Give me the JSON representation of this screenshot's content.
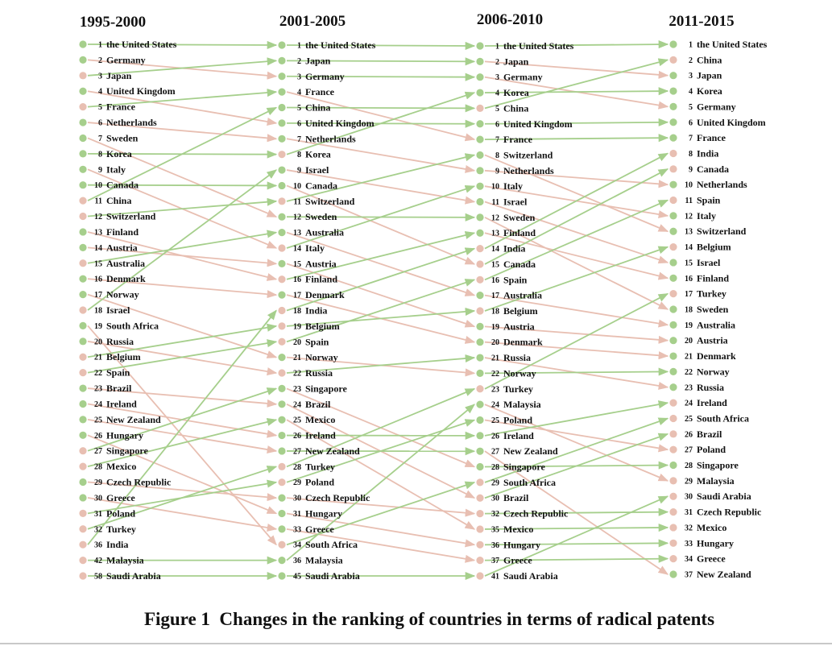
{
  "figure": {
    "caption": "Figure 1  Changes in the ranking of countries in terms of radical patents"
  },
  "colors": {
    "up": "#a6cf8c",
    "down": "#e8bfb2",
    "text": "#111111"
  },
  "periods": [
    {
      "title": "1995-2000",
      "entries": [
        {
          "rank": "1",
          "country": "the United States",
          "trend": "up"
        },
        {
          "rank": "2",
          "country": "Germany",
          "trend": "up"
        },
        {
          "rank": "3",
          "country": "Japan",
          "trend": "down"
        },
        {
          "rank": "4",
          "country": "United Kingdom",
          "trend": "up"
        },
        {
          "rank": "5",
          "country": "France",
          "trend": "down"
        },
        {
          "rank": "6",
          "country": "Netherlands",
          "trend": "up"
        },
        {
          "rank": "7",
          "country": "Sweden",
          "trend": "up"
        },
        {
          "rank": "8",
          "country": "Korea",
          "trend": "up"
        },
        {
          "rank": "9",
          "country": "Italy",
          "trend": "up"
        },
        {
          "rank": "10",
          "country": "Canada",
          "trend": "up"
        },
        {
          "rank": "11",
          "country": "China",
          "trend": "down"
        },
        {
          "rank": "12",
          "country": "Switzerland",
          "trend": "down"
        },
        {
          "rank": "13",
          "country": "Finland",
          "trend": "up"
        },
        {
          "rank": "14",
          "country": "Austria",
          "trend": "up"
        },
        {
          "rank": "15",
          "country": "Australia",
          "trend": "down"
        },
        {
          "rank": "16",
          "country": "Denmark",
          "trend": "up"
        },
        {
          "rank": "17",
          "country": "Norway",
          "trend": "up"
        },
        {
          "rank": "18",
          "country": "Israel",
          "trend": "down"
        },
        {
          "rank": "19",
          "country": "South Africa",
          "trend": "up"
        },
        {
          "rank": "20",
          "country": "Russia",
          "trend": "up"
        },
        {
          "rank": "21",
          "country": "Belgium",
          "trend": "down"
        },
        {
          "rank": "22",
          "country": "Spain",
          "trend": "down"
        },
        {
          "rank": "23",
          "country": "Brazil",
          "trend": "up"
        },
        {
          "rank": "24",
          "country": "Ireland",
          "trend": "up"
        },
        {
          "rank": "25",
          "country": "New Zealand",
          "trend": "up"
        },
        {
          "rank": "26",
          "country": "Hungary",
          "trend": "up"
        },
        {
          "rank": "27",
          "country": "Singapore",
          "trend": "down"
        },
        {
          "rank": "28",
          "country": "Mexico",
          "trend": "down"
        },
        {
          "rank": "29",
          "country": "Czech Republic",
          "trend": "up"
        },
        {
          "rank": "30",
          "country": "Greece",
          "trend": "up"
        },
        {
          "rank": "31",
          "country": "Poland",
          "trend": "down"
        },
        {
          "rank": "32",
          "country": "Turkey",
          "trend": "down"
        },
        {
          "rank": "36",
          "country": "India",
          "trend": "down"
        },
        {
          "rank": "42",
          "country": "Malaysia",
          "trend": "down"
        },
        {
          "rank": "58",
          "country": "Saudi Arabia",
          "trend": "down"
        }
      ]
    },
    {
      "title": "2001-2005",
      "entries": [
        {
          "rank": "1",
          "country": "the United States",
          "trend": "up"
        },
        {
          "rank": "2",
          "country": "Japan",
          "trend": "up"
        },
        {
          "rank": "3",
          "country": "Germany",
          "trend": "up"
        },
        {
          "rank": "4",
          "country": "France",
          "trend": "up"
        },
        {
          "rank": "5",
          "country": "China",
          "trend": "up"
        },
        {
          "rank": "6",
          "country": "United Kingdom",
          "trend": "up"
        },
        {
          "rank": "7",
          "country": "Netherlands",
          "trend": "up"
        },
        {
          "rank": "8",
          "country": "Korea",
          "trend": "down"
        },
        {
          "rank": "9",
          "country": "Israel",
          "trend": "up"
        },
        {
          "rank": "10",
          "country": "Canada",
          "trend": "up"
        },
        {
          "rank": "11",
          "country": "Switzerland",
          "trend": "down"
        },
        {
          "rank": "12",
          "country": "Sweden",
          "trend": "up"
        },
        {
          "rank": "13",
          "country": "Australia",
          "trend": "up"
        },
        {
          "rank": "14",
          "country": "Italy",
          "trend": "down"
        },
        {
          "rank": "15",
          "country": "Austria",
          "trend": "up"
        },
        {
          "rank": "16",
          "country": "Finland",
          "trend": "down"
        },
        {
          "rank": "17",
          "country": "Denmark",
          "trend": "up"
        },
        {
          "rank": "18",
          "country": "India",
          "trend": "down"
        },
        {
          "rank": "19",
          "country": "Belgium",
          "trend": "down"
        },
        {
          "rank": "20",
          "country": "Spain",
          "trend": "down"
        },
        {
          "rank": "21",
          "country": "Norway",
          "trend": "up"
        },
        {
          "rank": "22",
          "country": "Russia",
          "trend": "down"
        },
        {
          "rank": "23",
          "country": "Singapore",
          "trend": "up"
        },
        {
          "rank": "24",
          "country": "Brazil",
          "trend": "up"
        },
        {
          "rank": "25",
          "country": "Mexico",
          "trend": "up"
        },
        {
          "rank": "26",
          "country": "Ireland",
          "trend": "up"
        },
        {
          "rank": "27",
          "country": "New Zealand",
          "trend": "up"
        },
        {
          "rank": "28",
          "country": "Turkey",
          "trend": "down"
        },
        {
          "rank": "29",
          "country": "Poland",
          "trend": "down"
        },
        {
          "rank": "30",
          "country": "Czech Republic",
          "trend": "up"
        },
        {
          "rank": "31",
          "country": "Hungary",
          "trend": "up"
        },
        {
          "rank": "33",
          "country": "Greece",
          "trend": "up"
        },
        {
          "rank": "34",
          "country": "South Africa",
          "trend": "down"
        },
        {
          "rank": "36",
          "country": "Malaysia",
          "trend": "up"
        },
        {
          "rank": "45",
          "country": "Saudi Arabia",
          "trend": "up"
        }
      ]
    },
    {
      "title": "2006-2010",
      "entries": [
        {
          "rank": "1",
          "country": "the United States",
          "trend": "up"
        },
        {
          "rank": "2",
          "country": "Japan",
          "trend": "up"
        },
        {
          "rank": "3",
          "country": "Germany",
          "trend": "up"
        },
        {
          "rank": "4",
          "country": "Korea",
          "trend": "up"
        },
        {
          "rank": "5",
          "country": "China",
          "trend": "down"
        },
        {
          "rank": "6",
          "country": "United Kingdom",
          "trend": "up"
        },
        {
          "rank": "7",
          "country": "France",
          "trend": "up"
        },
        {
          "rank": "8",
          "country": "Switzerland",
          "trend": "up"
        },
        {
          "rank": "9",
          "country": "Netherlands",
          "trend": "up"
        },
        {
          "rank": "10",
          "country": "Italy",
          "trend": "up"
        },
        {
          "rank": "11",
          "country": "Israel",
          "trend": "up"
        },
        {
          "rank": "12",
          "country": "Sweden",
          "trend": "up"
        },
        {
          "rank": "13",
          "country": "Finland",
          "trend": "up"
        },
        {
          "rank": "14",
          "country": "India",
          "trend": "down"
        },
        {
          "rank": "15",
          "country": "Canada",
          "trend": "down"
        },
        {
          "rank": "16",
          "country": "Spain",
          "trend": "down"
        },
        {
          "rank": "17",
          "country": "Australia",
          "trend": "up"
        },
        {
          "rank": "18",
          "country": "Belgium",
          "trend": "down"
        },
        {
          "rank": "19",
          "country": "Austria",
          "trend": "up"
        },
        {
          "rank": "20",
          "country": "Denmark",
          "trend": "up"
        },
        {
          "rank": "21",
          "country": "Russia",
          "trend": "up"
        },
        {
          "rank": "22",
          "country": "Norway",
          "trend": "up"
        },
        {
          "rank": "23",
          "country": "Turkey",
          "trend": "down"
        },
        {
          "rank": "24",
          "country": "Malaysia",
          "trend": "up"
        },
        {
          "rank": "25",
          "country": "Poland",
          "trend": "up"
        },
        {
          "rank": "26",
          "country": "Ireland",
          "trend": "up"
        },
        {
          "rank": "27",
          "country": "New Zealand",
          "trend": "up"
        },
        {
          "rank": "28",
          "country": "Singapore",
          "trend": "up"
        },
        {
          "rank": "29",
          "country": "South Africa",
          "trend": "down"
        },
        {
          "rank": "30",
          "country": "Brazil",
          "trend": "down"
        },
        {
          "rank": "32",
          "country": "Czech Republic",
          "trend": "down"
        },
        {
          "rank": "35",
          "country": "Mexico",
          "trend": "down"
        },
        {
          "rank": "36",
          "country": "Hungary",
          "trend": "down"
        },
        {
          "rank": "37",
          "country": "Greece",
          "trend": "down"
        },
        {
          "rank": "41",
          "country": "Saudi Arabia",
          "trend": "down"
        }
      ]
    },
    {
      "title": "2011-2015",
      "entries": [
        {
          "rank": "1",
          "country": "the United States",
          "trend": "up"
        },
        {
          "rank": "2",
          "country": "China",
          "trend": "down"
        },
        {
          "rank": "3",
          "country": "Japan",
          "trend": "up"
        },
        {
          "rank": "4",
          "country": "Korea",
          "trend": "up"
        },
        {
          "rank": "5",
          "country": "Germany",
          "trend": "up"
        },
        {
          "rank": "6",
          "country": "United Kingdom",
          "trend": "up"
        },
        {
          "rank": "7",
          "country": "France",
          "trend": "up"
        },
        {
          "rank": "8",
          "country": "India",
          "trend": "down"
        },
        {
          "rank": "9",
          "country": "Canada",
          "trend": "down"
        },
        {
          "rank": "10",
          "country": "Netherlands",
          "trend": "up"
        },
        {
          "rank": "11",
          "country": "Spain",
          "trend": "down"
        },
        {
          "rank": "12",
          "country": "Italy",
          "trend": "up"
        },
        {
          "rank": "13",
          "country": "Switzerland",
          "trend": "up"
        },
        {
          "rank": "14",
          "country": "Belgium",
          "trend": "down"
        },
        {
          "rank": "15",
          "country": "Israel",
          "trend": "up"
        },
        {
          "rank": "16",
          "country": "Finland",
          "trend": "up"
        },
        {
          "rank": "17",
          "country": "Turkey",
          "trend": "down"
        },
        {
          "rank": "18",
          "country": "Sweden",
          "trend": "up"
        },
        {
          "rank": "19",
          "country": "Australia",
          "trend": "up"
        },
        {
          "rank": "20",
          "country": "Austria",
          "trend": "up"
        },
        {
          "rank": "21",
          "country": "Denmark",
          "trend": "up"
        },
        {
          "rank": "22",
          "country": "Norway",
          "trend": "up"
        },
        {
          "rank": "23",
          "country": "Russia",
          "trend": "up"
        },
        {
          "rank": "24",
          "country": "Ireland",
          "trend": "down"
        },
        {
          "rank": "25",
          "country": "South Africa",
          "trend": "down"
        },
        {
          "rank": "26",
          "country": "Brazil",
          "trend": "down"
        },
        {
          "rank": "27",
          "country": "Poland",
          "trend": "down"
        },
        {
          "rank": "28",
          "country": "Singapore",
          "trend": "up"
        },
        {
          "rank": "29",
          "country": "Malaysia",
          "trend": "down"
        },
        {
          "rank": "30",
          "country": "Saudi Arabia",
          "trend": "down"
        },
        {
          "rank": "31",
          "country": "Czech Republic",
          "trend": "down"
        },
        {
          "rank": "32",
          "country": "Mexico",
          "trend": "down"
        },
        {
          "rank": "33",
          "country": "Hungary",
          "trend": "down"
        },
        {
          "rank": "34",
          "country": "Greece",
          "trend": "down"
        },
        {
          "rank": "37",
          "country": "New Zealand",
          "trend": "up"
        }
      ]
    }
  ]
}
